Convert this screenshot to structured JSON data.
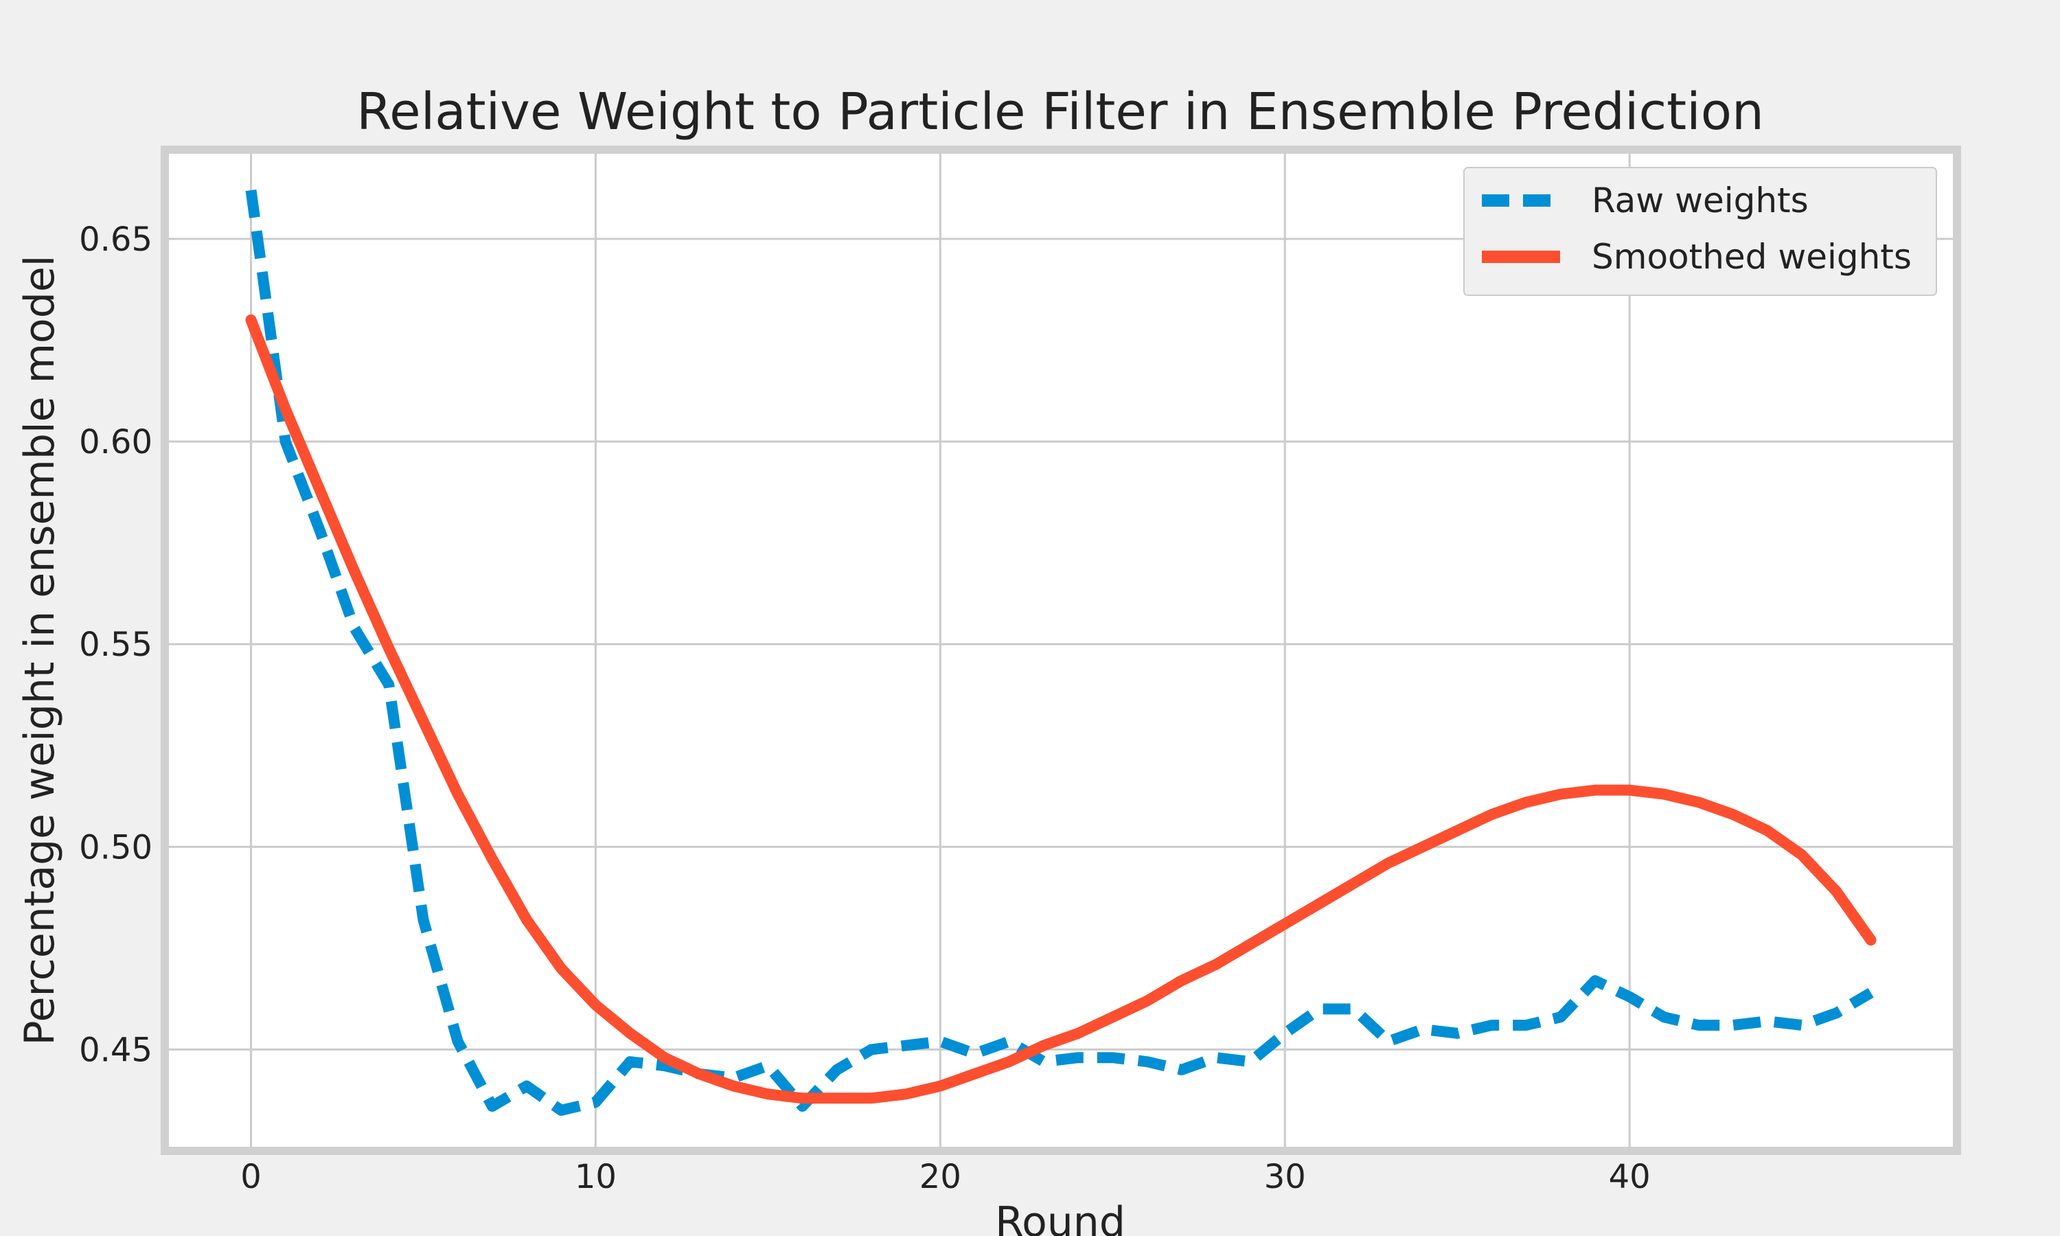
{
  "chart_data": {
    "type": "line",
    "title": "Relative Weight to Particle Filter in Ensemble Prediction",
    "xlabel": "Round",
    "ylabel": "Percentage weight in ensemble model",
    "xlim": [
      -2.5,
      49.5
    ],
    "ylim": [
      0.425,
      0.672
    ],
    "xticks": [
      0,
      10,
      20,
      30,
      40
    ],
    "xtick_labels": [
      "0",
      "10",
      "20",
      "30",
      "40"
    ],
    "yticks": [
      0.45,
      0.5,
      0.55,
      0.6,
      0.65
    ],
    "ytick_labels": [
      "0.45",
      "0.50",
      "0.55",
      "0.60",
      "0.65"
    ],
    "grid": true,
    "legend_position": "top-right",
    "colors": {
      "raw": "#008fd5",
      "smoothed": "#fc4f30",
      "grid": "#cbcbcb",
      "frame": "#d0d0d0",
      "plot_background": "#ffffff"
    },
    "x": [
      0,
      1,
      2,
      3,
      4,
      5,
      6,
      7,
      8,
      9,
      10,
      11,
      12,
      13,
      14,
      15,
      16,
      17,
      18,
      19,
      20,
      21,
      22,
      23,
      24,
      25,
      26,
      27,
      28,
      29,
      30,
      31,
      32,
      33,
      34,
      35,
      36,
      37,
      38,
      39,
      40,
      41,
      42,
      43,
      44,
      45,
      46,
      47
    ],
    "series": [
      {
        "name": "Raw weights",
        "style": "dashed",
        "values": [
          0.662,
          0.6,
          0.578,
          0.554,
          0.54,
          0.482,
          0.452,
          0.436,
          0.441,
          0.435,
          0.437,
          0.447,
          0.446,
          0.444,
          0.443,
          0.446,
          0.436,
          0.445,
          0.45,
          0.451,
          0.452,
          0.449,
          0.452,
          0.447,
          0.448,
          0.448,
          0.447,
          0.445,
          0.448,
          0.447,
          0.454,
          0.46,
          0.46,
          0.452,
          0.455,
          0.454,
          0.456,
          0.456,
          0.458,
          0.467,
          0.463,
          0.458,
          0.456,
          0.456,
          0.457,
          0.456,
          0.459,
          0.464
        ]
      },
      {
        "name": "Smoothed weights",
        "style": "solid",
        "values": [
          0.63,
          0.608,
          0.588,
          0.568,
          0.549,
          0.531,
          0.513,
          0.497,
          0.482,
          0.47,
          0.461,
          0.454,
          0.448,
          0.444,
          0.441,
          0.439,
          0.438,
          0.438,
          0.438,
          0.439,
          0.441,
          0.444,
          0.447,
          0.451,
          0.454,
          0.458,
          0.462,
          0.467,
          0.471,
          0.476,
          0.481,
          0.486,
          0.491,
          0.496,
          0.5,
          0.504,
          0.508,
          0.511,
          0.513,
          0.514,
          0.514,
          0.513,
          0.511,
          0.508,
          0.504,
          0.498,
          0.489,
          0.477
        ]
      }
    ]
  }
}
